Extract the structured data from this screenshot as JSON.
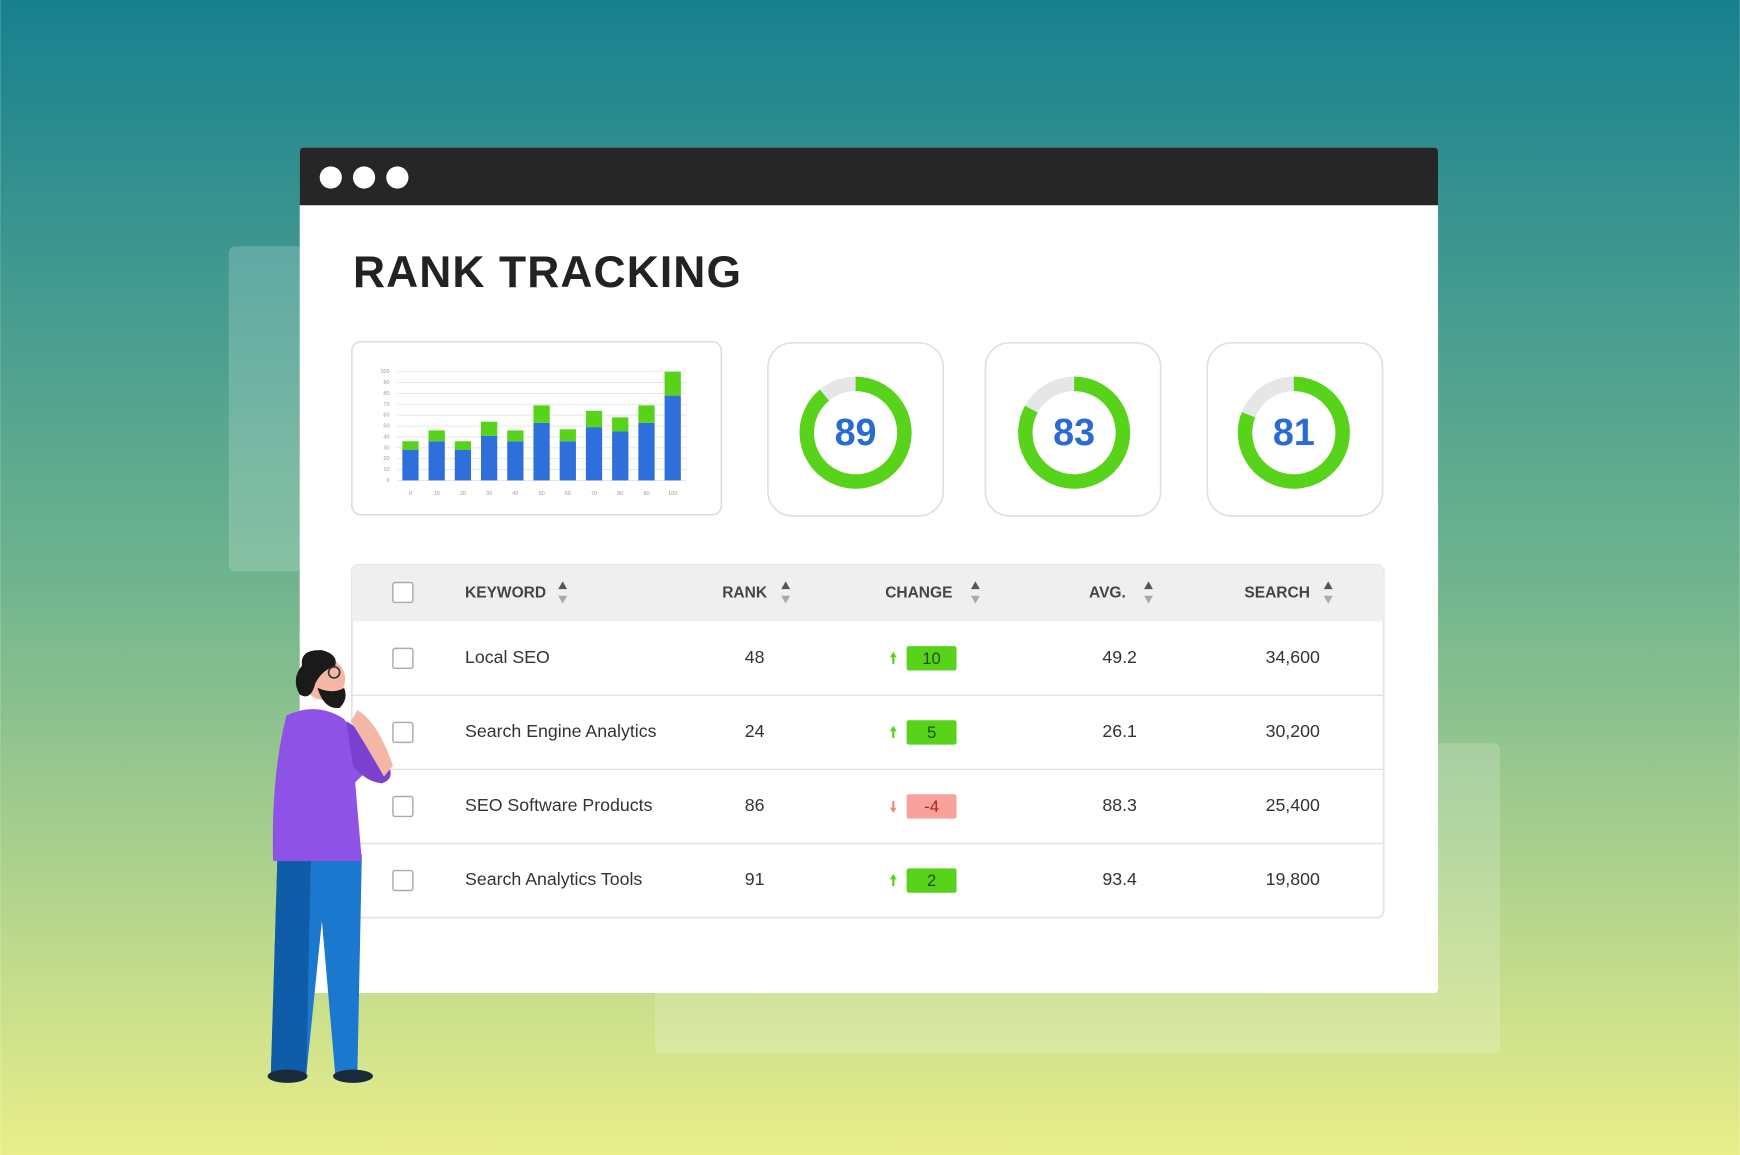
{
  "window": {
    "title": "RANK TRACKING"
  },
  "mini_chart": {
    "type": "bar",
    "stacked": true,
    "categories": [
      "0",
      "10",
      "20",
      "30",
      "40",
      "50",
      "60",
      "70",
      "80",
      "90",
      "100"
    ],
    "series": [
      {
        "color": "#2f6fdc",
        "values": [
          28,
          36,
          28,
          41,
          36,
          53,
          36,
          49,
          45,
          53,
          78
        ]
      },
      {
        "color": "#57d31a",
        "values": [
          8,
          10,
          8,
          13,
          10,
          16,
          11,
          15,
          13,
          16,
          22
        ]
      }
    ],
    "ylim": [
      0,
      100
    ],
    "yticks": [
      0,
      10,
      20,
      30,
      40,
      50,
      60,
      70,
      80,
      90,
      100
    ],
    "grid": true
  },
  "gauges": {
    "range": [
      0,
      100
    ],
    "values": [
      89,
      83,
      81
    ],
    "color": "#57d31a"
  },
  "table": {
    "headers": [
      "KEYWORD",
      "RANK",
      "CHANGE",
      "AVG.",
      "SEARCH"
    ],
    "rows": [
      [
        "Local SEO",
        48,
        10,
        49.2,
        "34,600"
      ],
      [
        "Search Engine Analytics",
        24,
        5,
        26.1,
        "30,200"
      ],
      [
        "SEO Software Products",
        86,
        -4,
        88.3,
        "25,400"
      ],
      [
        "Search Analytics Tools",
        91,
        2,
        93.4,
        "19,800"
      ]
    ]
  }
}
